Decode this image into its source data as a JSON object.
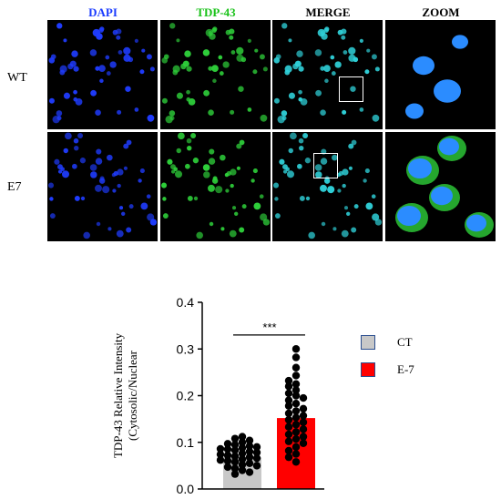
{
  "figure": {
    "columns": [
      {
        "label": "DAPI",
        "color": "#1a3bff"
      },
      {
        "label": "TDP-43",
        "color": "#19c219"
      },
      {
        "label": "MERGE",
        "color": "#000000"
      },
      {
        "label": "ZOOM",
        "color": "#000000"
      }
    ],
    "rows": [
      {
        "label": "WT"
      },
      {
        "label": "E7"
      }
    ]
  },
  "chart_data": {
    "type": "bar",
    "categories": [
      "CT",
      "E-7"
    ],
    "values": [
      0.068,
      0.152
    ],
    "bar_colors": [
      "#c8c8c8",
      "#ff0000"
    ],
    "ylabel_lines": [
      "TDP-43 Relative Intensity",
      "(Cytosolic/Nuclear"
    ],
    "ylim": [
      0.0,
      0.4
    ],
    "yticks": [
      "0.0",
      "0.1",
      "0.2",
      "0.3",
      "0.4"
    ],
    "significance": "***",
    "points": {
      "CT": [
        0.112,
        0.108,
        0.104,
        0.1,
        0.097,
        0.095,
        0.092,
        0.09,
        0.088,
        0.086,
        0.085,
        0.083,
        0.08,
        0.078,
        0.076,
        0.074,
        0.072,
        0.07,
        0.068,
        0.066,
        0.064,
        0.062,
        0.06,
        0.058,
        0.055,
        0.052,
        0.05,
        0.047,
        0.044,
        0.04,
        0.036,
        0.032
      ],
      "E-7": [
        0.3,
        0.282,
        0.26,
        0.243,
        0.232,
        0.225,
        0.22,
        0.212,
        0.205,
        0.2,
        0.195,
        0.19,
        0.183,
        0.178,
        0.172,
        0.167,
        0.162,
        0.157,
        0.153,
        0.148,
        0.143,
        0.138,
        0.133,
        0.128,
        0.122,
        0.117,
        0.112,
        0.107,
        0.102,
        0.098,
        0.09,
        0.082,
        0.075,
        0.068,
        0.058
      ]
    },
    "legend": [
      {
        "label": "CT",
        "color": "#c8c8c8"
      },
      {
        "label": "E-7",
        "color": "#ff0000"
      }
    ]
  }
}
